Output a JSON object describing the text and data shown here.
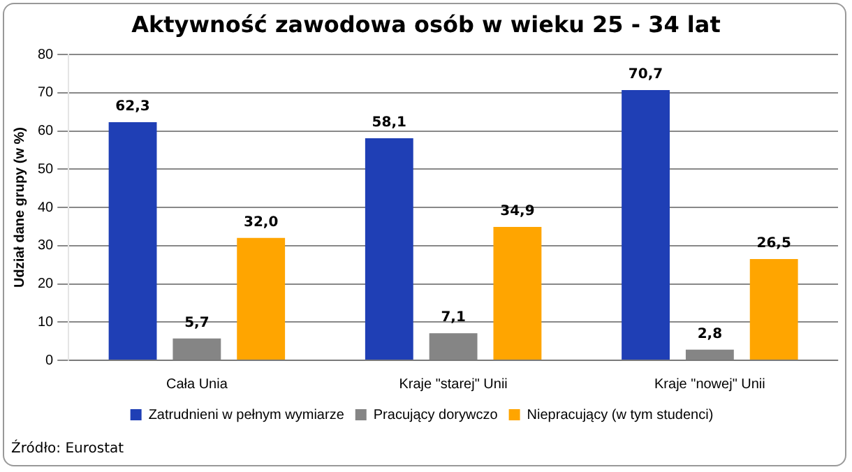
{
  "chart_data": {
    "type": "bar",
    "title": "Aktywność zawodowa osób w wieku 25 - 34 lat",
    "ylabel": "Udział dane grupy (w %)",
    "categories": [
      "Cała Unia",
      "Kraje \"starej\" Unii",
      "Kraje \"nowej\" Unii"
    ],
    "series": [
      {
        "name": "Zatrudnieni w pełnym wymiarze",
        "color": "#1f3fb5",
        "values": [
          62.3,
          58.1,
          70.7
        ],
        "value_labels": [
          "62,3",
          "58,1",
          "70,7"
        ]
      },
      {
        "name": "Pracujący dorywczo",
        "color": "#858585",
        "values": [
          5.7,
          7.1,
          2.8
        ],
        "value_labels": [
          "5,7",
          "7,1",
          "2,8"
        ]
      },
      {
        "name": "Niepracujący (w tym studenci)",
        "color": "#ffa500",
        "values": [
          32.0,
          34.9,
          26.5
        ],
        "value_labels": [
          "32,0",
          "34,9",
          "26,5"
        ]
      }
    ],
    "ylim": [
      0,
      80
    ],
    "yticks": [
      0,
      10,
      20,
      30,
      40,
      50,
      60,
      70,
      80
    ],
    "grid": "y",
    "legend": "bottom",
    "annotations": [
      "Źródło: Eurostat"
    ]
  }
}
